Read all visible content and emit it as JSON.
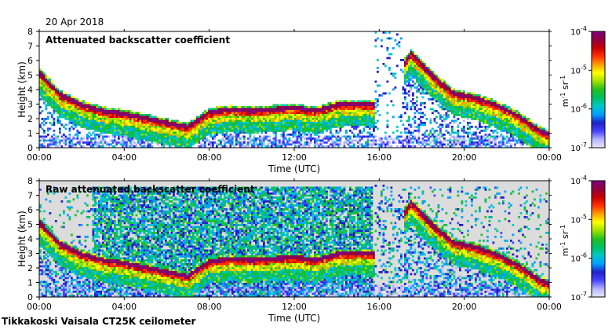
{
  "date": "20 Apr 2018",
  "footer": "Tikkakoski Vaisala CT25K ceilometer",
  "colorscale": {
    "stops": [
      "#e8e8ff",
      "#b4b4ff",
      "#4444ff",
      "#2020c8",
      "#00a0ff",
      "#00c8c8",
      "#00c060",
      "#20c020",
      "#a0e000",
      "#ffff00",
      "#ffa000",
      "#ff3000",
      "#c80000",
      "#900040",
      "#800080"
    ],
    "background": "#dcdcdc",
    "no_data": "#ffffff"
  },
  "chart_data": [
    {
      "type": "heatmap",
      "title": "Attenuated backscatter coefficient",
      "xlabel": "Time (UTC)",
      "ylabel": "Height (km)",
      "x_ticks": [
        "00:00",
        "04:00",
        "08:00",
        "12:00",
        "16:00",
        "20:00",
        "00:00"
      ],
      "x_range_hours": [
        0,
        24
      ],
      "ylim": [
        0,
        8
      ],
      "y_ticks": [
        "0",
        "1",
        "2",
        "3",
        "4",
        "5",
        "6",
        "7",
        "8"
      ],
      "colorbar": {
        "scale": "log",
        "range": [
          1e-07,
          0.0001
        ],
        "tick_labels": [
          [
            "10",
            "-4"
          ],
          [
            "10",
            "-5"
          ],
          [
            "10",
            "-6"
          ],
          [
            "10",
            "-7"
          ]
        ],
        "unit_label": [
          "m",
          "-1",
          " sr",
          "-1"
        ]
      },
      "layer_height_km": [
        [
          0,
          5.2
        ],
        [
          1,
          3.7
        ],
        [
          2,
          3.0
        ],
        [
          3,
          2.6
        ],
        [
          4,
          2.4
        ],
        [
          5,
          2.1
        ],
        [
          6,
          1.8
        ],
        [
          7,
          1.5
        ],
        [
          8,
          2.5
        ],
        [
          9,
          2.7
        ],
        [
          10,
          2.6
        ],
        [
          11,
          2.7
        ],
        [
          12,
          2.8
        ],
        [
          13,
          2.6
        ],
        [
          14,
          3.0
        ],
        [
          15,
          3.1
        ],
        [
          15.8,
          3.0
        ],
        [
          17.5,
          6.5
        ],
        [
          18.5,
          5.0
        ],
        [
          19.5,
          3.8
        ],
        [
          20.5,
          3.5
        ],
        [
          21.5,
          3.0
        ],
        [
          22.5,
          2.3
        ],
        [
          23.5,
          1.3
        ],
        [
          24,
          1.0
        ]
      ],
      "noise": false
    },
    {
      "type": "heatmap",
      "title": "Raw attenuated backscatter coefficient",
      "xlabel": "Time (UTC)",
      "ylabel": "Height (km)",
      "x_ticks": [
        "00:00",
        "04:00",
        "08:00",
        "12:00",
        "16:00",
        "20:00",
        "00:00"
      ],
      "x_range_hours": [
        0,
        24
      ],
      "ylim": [
        0,
        8
      ],
      "y_ticks": [
        "0",
        "1",
        "2",
        "3",
        "4",
        "5",
        "6",
        "7",
        "8"
      ],
      "colorbar": {
        "scale": "log",
        "range": [
          1e-07,
          0.0001
        ],
        "tick_labels": [
          [
            "10",
            "-4"
          ],
          [
            "10",
            "-5"
          ],
          [
            "10",
            "-6"
          ],
          [
            "10",
            "-7"
          ]
        ],
        "unit_label": [
          "m",
          "-1",
          " sr",
          "-1"
        ]
      },
      "layer_height_km": [
        [
          0,
          5.2
        ],
        [
          1,
          3.7
        ],
        [
          2,
          3.0
        ],
        [
          3,
          2.6
        ],
        [
          4,
          2.4
        ],
        [
          5,
          2.1
        ],
        [
          6,
          1.8
        ],
        [
          7,
          1.5
        ],
        [
          8,
          2.5
        ],
        [
          9,
          2.7
        ],
        [
          10,
          2.6
        ],
        [
          11,
          2.7
        ],
        [
          12,
          2.8
        ],
        [
          13,
          2.6
        ],
        [
          14,
          3.0
        ],
        [
          15,
          3.1
        ],
        [
          15.8,
          3.0
        ],
        [
          17.5,
          6.5
        ],
        [
          18.5,
          5.0
        ],
        [
          19.5,
          3.8
        ],
        [
          20.5,
          3.5
        ],
        [
          21.5,
          3.0
        ],
        [
          22.5,
          2.3
        ],
        [
          23.5,
          1.3
        ],
        [
          24,
          1.0
        ]
      ],
      "noise": true
    }
  ]
}
